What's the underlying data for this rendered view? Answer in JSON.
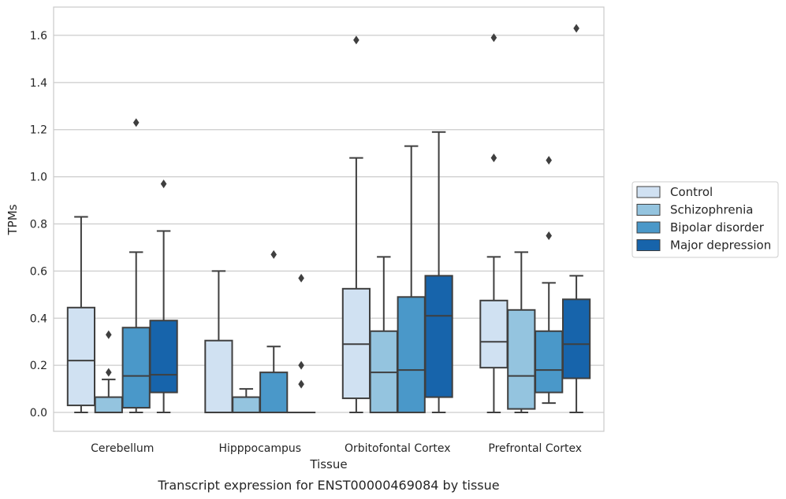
{
  "chart_data": {
    "type": "box",
    "title": "",
    "caption": "Transcript expression for ENST00000469084 by tissue",
    "xlabel": "Tissue",
    "ylabel": "TPMs",
    "ylim": [
      -0.08,
      1.72
    ],
    "yticks": [
      "0.0",
      "0.2",
      "0.4",
      "0.6",
      "0.8",
      "1.0",
      "1.2",
      "1.4",
      "1.6"
    ],
    "grid": "horizontal",
    "legend_position": "right",
    "categories": [
      "Cerebellum",
      "Hipppocampus",
      "Orbitofontal Cortex",
      "Prefrontal Cortex"
    ],
    "series": [
      {
        "name": "Control",
        "color": "#d0e1f2",
        "boxes": [
          {
            "whislo": 0.0,
            "q1": 0.03,
            "med": 0.22,
            "q3": 0.445,
            "whishi": 0.83,
            "fliers": []
          },
          {
            "whislo": 0.0,
            "q1": 0.0,
            "med": 0.0,
            "q3": 0.305,
            "whishi": 0.6,
            "fliers": []
          },
          {
            "whislo": 0.0,
            "q1": 0.06,
            "med": 0.29,
            "q3": 0.525,
            "whishi": 1.08,
            "fliers": [
              1.58
            ]
          },
          {
            "whislo": 0.0,
            "q1": 0.19,
            "med": 0.3,
            "q3": 0.475,
            "whishi": 0.66,
            "fliers": [
              1.08,
              1.59
            ]
          }
        ]
      },
      {
        "name": "Schizophrenia",
        "color": "#94c4df",
        "boxes": [
          {
            "whislo": 0.0,
            "q1": 0.0,
            "med": 0.0,
            "q3": 0.065,
            "whishi": 0.14,
            "fliers": [
              0.17,
              0.33
            ]
          },
          {
            "whislo": 0.0,
            "q1": 0.0,
            "med": 0.0,
            "q3": 0.065,
            "whishi": 0.1,
            "fliers": []
          },
          {
            "whislo": 0.0,
            "q1": 0.0,
            "med": 0.17,
            "q3": 0.345,
            "whishi": 0.66,
            "fliers": []
          },
          {
            "whislo": 0.0,
            "q1": 0.015,
            "med": 0.155,
            "q3": 0.435,
            "whishi": 0.68,
            "fliers": []
          }
        ]
      },
      {
        "name": "Bipolar disorder",
        "color": "#4a98c9",
        "boxes": [
          {
            "whislo": 0.0,
            "q1": 0.02,
            "med": 0.155,
            "q3": 0.36,
            "whishi": 0.68,
            "fliers": [
              1.23
            ]
          },
          {
            "whislo": 0.0,
            "q1": 0.0,
            "med": 0.0,
            "q3": 0.17,
            "whishi": 0.28,
            "fliers": [
              0.67
            ]
          },
          {
            "whislo": 0.0,
            "q1": 0.0,
            "med": 0.18,
            "q3": 0.49,
            "whishi": 1.13,
            "fliers": []
          },
          {
            "whislo": 0.04,
            "q1": 0.085,
            "med": 0.18,
            "q3": 0.345,
            "whishi": 0.55,
            "fliers": [
              0.75,
              1.07
            ]
          }
        ]
      },
      {
        "name": "Major depression",
        "color": "#1764ab",
        "boxes": [
          {
            "whislo": 0.0,
            "q1": 0.085,
            "med": 0.16,
            "q3": 0.39,
            "whishi": 0.77,
            "fliers": [
              0.97
            ]
          },
          {
            "whislo": 0.0,
            "q1": 0.0,
            "med": 0.0,
            "q3": 0.0,
            "whishi": 0.0,
            "fliers": [
              0.12,
              0.2,
              0.57
            ]
          },
          {
            "whislo": 0.0,
            "q1": 0.065,
            "med": 0.41,
            "q3": 0.58,
            "whishi": 1.19,
            "fliers": []
          },
          {
            "whislo": 0.0,
            "q1": 0.145,
            "med": 0.29,
            "q3": 0.48,
            "whishi": 0.58,
            "fliers": [
              1.63
            ]
          }
        ]
      }
    ]
  }
}
